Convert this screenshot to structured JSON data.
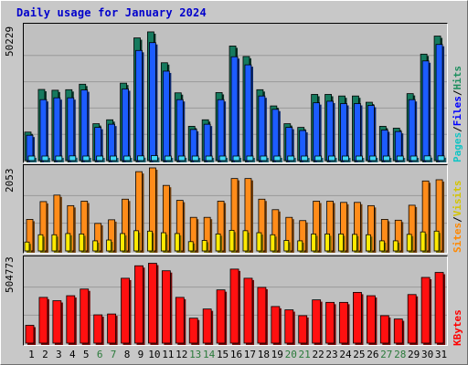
{
  "chart_data": {
    "type": "bar",
    "title": "Daily usage for January 2024",
    "categories": [
      "1",
      "2",
      "3",
      "4",
      "5",
      "6",
      "7",
      "8",
      "9",
      "10",
      "11",
      "12",
      "13",
      "14",
      "15",
      "16",
      "17",
      "18",
      "19",
      "20",
      "21",
      "22",
      "23",
      "24",
      "25",
      "26",
      "27",
      "28",
      "29",
      "30",
      "31"
    ],
    "weekend_days": [
      "6",
      "7",
      "13",
      "14",
      "20",
      "21",
      "27",
      "28"
    ],
    "colors": {
      "hits": "#167a5e",
      "files": "#1c5cff",
      "pages": "#3ed6f6",
      "visits": "#ff8c1a",
      "sites": "#ffea00",
      "kbytes": "#ff1010",
      "title": "#0000cc",
      "weekend_label": "#2a7a3a",
      "legend_pages": "#12c4c4",
      "legend_files": "#0000ff",
      "legend_hits": "#1f8f5f",
      "legend_sites": "#ff8800",
      "legend_visits": "#d4c400",
      "legend_kbytes": "#ff0000"
    },
    "panels": [
      {
        "name": "hits-files-pages",
        "y_max_label": "50229",
        "ylim": [
          0,
          50229
        ],
        "legend": [
          "Pages",
          "Files",
          "Hits"
        ],
        "series": [
          {
            "name": "Hits",
            "values": [
              10900,
              27200,
              26900,
              27100,
              29200,
              14100,
              15600,
              29600,
              46900,
              49200,
              37400,
              25900,
              13100,
              15600,
              26000,
              43800,
              39800,
              27100,
              20900,
              14100,
              12700,
              25300,
              25300,
              24700,
              24700,
              22300,
              13100,
              12400,
              25600,
              40700,
              47600
            ]
          },
          {
            "name": "Files",
            "values": [
              9700,
              23300,
              24000,
              24000,
              27000,
              12700,
              13900,
              27400,
              42100,
              45100,
              34200,
              23300,
              11900,
              13900,
              23300,
              39700,
              36600,
              24700,
              19600,
              12700,
              11500,
              22100,
              22700,
              21800,
              21800,
              21100,
              11700,
              11100,
              23300,
              38100,
              44400
            ]
          },
          {
            "name": "Pages",
            "values": [
              1500,
              1600,
              1600,
              1800,
              1500,
              1200,
              1300,
              1500,
              1800,
              1900,
              1600,
              1400,
              1200,
              1300,
              1400,
              1700,
              1700,
              1500,
              1400,
              1300,
              1200,
              1500,
              1500,
              1500,
              1500,
              1400,
              1300,
              1200,
              1500,
              1800,
              1800
            ]
          }
        ]
      },
      {
        "name": "visits-sites",
        "y_max_label": "2053",
        "ylim": [
          0,
          2053
        ],
        "legend": [
          "Sites",
          "Visits"
        ],
        "series": [
          {
            "name": "Visits",
            "values": [
              780,
              1220,
              1380,
              1120,
              1230,
              680,
              770,
              1280,
              1960,
              2053,
              1620,
              1250,
              830,
              830,
              1230,
              1790,
              1790,
              1280,
              1020,
              830,
              750,
              1230,
              1230,
              1200,
              1200,
              1120,
              780,
              760,
              1130,
              1730,
              1760
            ]
          },
          {
            "name": "Sites",
            "values": [
              220,
              400,
              400,
              430,
              420,
              250,
              270,
              430,
              500,
              490,
              450,
              430,
              230,
              260,
              420,
              510,
              500,
              450,
              400,
              260,
              250,
              420,
              420,
              420,
              410,
              400,
              250,
              250,
              410,
              470,
              490
            ]
          }
        ]
      },
      {
        "name": "kbytes",
        "y_max_label": "504773",
        "ylim": [
          0,
          504773
        ],
        "legend": [
          "KBytes"
        ],
        "series": [
          {
            "name": "KBytes",
            "values": [
              107000,
              275000,
              255000,
              285000,
              325000,
              170000,
              175000,
              390000,
              465000,
              480000,
              435000,
              275000,
              150000,
              205000,
              320000,
              445000,
              390000,
              335000,
              220000,
              200000,
              165000,
              260000,
              245000,
              245000,
              305000,
              285000,
              165000,
              145000,
              292000,
              395000,
              425000
            ]
          }
        ]
      }
    ]
  }
}
